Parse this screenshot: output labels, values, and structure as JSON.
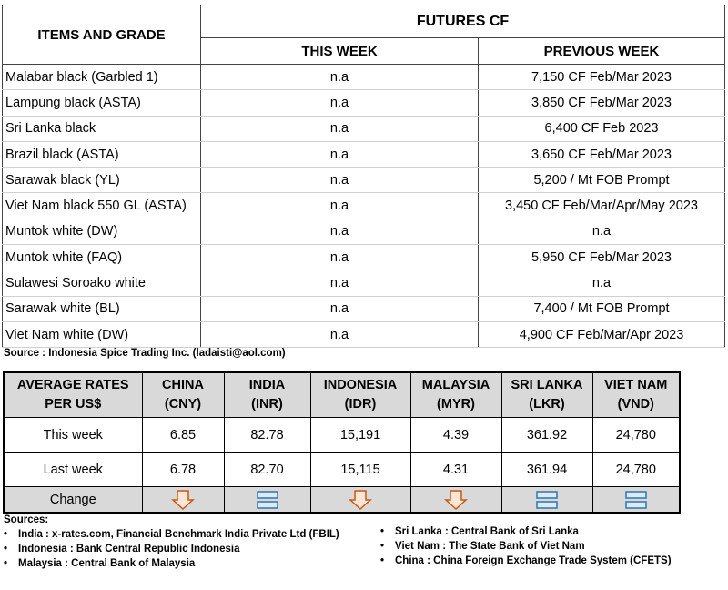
{
  "table1": {
    "header": {
      "items": "ITEMS AND GRADE",
      "group": "FUTURES CF",
      "this_week": "THIS WEEK",
      "previous_week": "PREVIOUS WEEK"
    },
    "rows": [
      [
        "Malabar black (Garbled 1)",
        "n.a",
        "7,150 CF Feb/Mar 2023"
      ],
      [
        "Lampung black (ASTA)",
        "n.a",
        "3,850 CF Feb/Mar 2023"
      ],
      [
        "Sri Lanka black",
        "n.a",
        "6,400 CF Feb 2023"
      ],
      [
        "Brazil black (ASTA)",
        "n.a",
        "3,650 CF Feb/Mar 2023"
      ],
      [
        "Sarawak black (YL)",
        "n.a",
        "5,200 / Mt FOB Prompt"
      ],
      [
        "Viet Nam black 550 GL (ASTA)",
        "n.a",
        "3,450 CF Feb/Mar/Apr/May 2023"
      ],
      [
        "Muntok white (DW)",
        "n.a",
        "n.a"
      ],
      [
        "Muntok white (FAQ)",
        "n.a",
        "5,950 CF Feb/Mar 2023"
      ],
      [
        "Sulawesi Soroako white",
        "n.a",
        "n.a"
      ],
      [
        "Sarawak  white (BL)",
        "n.a",
        "7,400 / Mt FOB Prompt"
      ],
      [
        "Viet Nam white (DW)",
        "n.a",
        "4,900 CF Feb/Mar/Apr 2023"
      ]
    ]
  },
  "source": "Source : Indonesia Spice Trading Inc. (ladaisti@aol.com)",
  "table2": {
    "header": [
      "AVERAGE RATES\nPER US$",
      "CHINA\n(CNY)",
      "INDIA\n(INR)",
      "INDONESIA\n(IDR)",
      "MALAYSIA\n(MYR)",
      "SRI LANKA\n(LKR)",
      "VIET NAM\n(VND)"
    ],
    "rows": [
      [
        "This week",
        "6.85",
        "82.78",
        "15,191",
        "4.39",
        "361.92",
        "24,780"
      ],
      [
        "Last week",
        "6.78",
        "82.70",
        "15,115",
        "4.31",
        "361.94",
        "24,780"
      ]
    ],
    "change_label": "Change"
  },
  "sources": {
    "title": "Sources:",
    "left": [
      "India : x-rates.com, Financial Benchmark India Private Ltd (FBIL)",
      "Indonesia : Bank Central Republic Indonesia",
      "Malaysia : Central Bank of Malaysia"
    ],
    "right": [
      "Sri Lanka : Central Bank of Sri Lanka",
      "Viet Nam : The State Bank of Viet Nam",
      "China : China Foreign Exchange Trade System (CFETS)"
    ]
  }
}
